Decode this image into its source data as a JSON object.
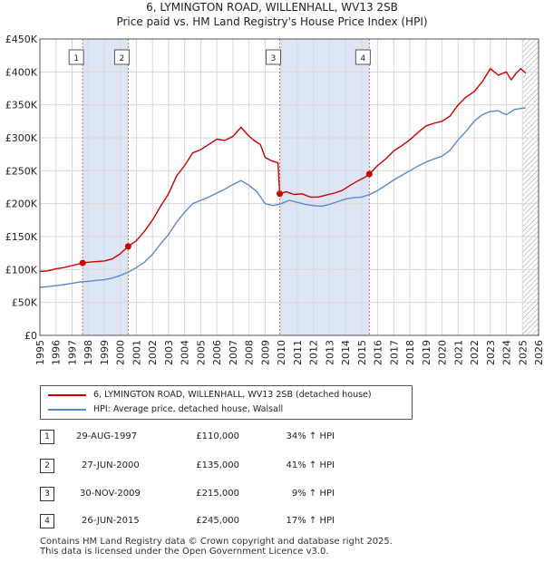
{
  "chart_data": {
    "type": "line",
    "title": "6, LYMINGTON ROAD, WILLENHALL, WV13 2SB",
    "subtitle": "Price paid vs. HM Land Registry's House Price Index (HPI)",
    "xlabel": "",
    "ylabel": "",
    "xlim": [
      1995,
      2026
    ],
    "ylim": [
      0,
      450000
    ],
    "x_ticks": [
      "1995",
      "1996",
      "1997",
      "1998",
      "1999",
      "2000",
      "2001",
      "2002",
      "2003",
      "2004",
      "2005",
      "2006",
      "2007",
      "2008",
      "2009",
      "2010",
      "2011",
      "2012",
      "2013",
      "2014",
      "2015",
      "2016",
      "2017",
      "2018",
      "2019",
      "2020",
      "2021",
      "2022",
      "2023",
      "2024",
      "2025",
      "2026"
    ],
    "y_ticks": [
      {
        "value": 0,
        "label": "£0"
      },
      {
        "value": 50000,
        "label": "£50K"
      },
      {
        "value": 100000,
        "label": "£100K"
      },
      {
        "value": 150000,
        "label": "£150K"
      },
      {
        "value": 200000,
        "label": "£200K"
      },
      {
        "value": 250000,
        "label": "£250K"
      },
      {
        "value": 300000,
        "label": "£300K"
      },
      {
        "value": 350000,
        "label": "£350K"
      },
      {
        "value": 400000,
        "label": "£400K"
      },
      {
        "value": 450000,
        "label": "£450K"
      }
    ],
    "series": [
      {
        "name": "6, LYMINGTON ROAD, WILLENHALL, WV13 2SB (detached house)",
        "color": "#cc0000",
        "x": [
          1995.0,
          1995.5,
          1996.0,
          1996.5,
          1997.0,
          1997.66,
          1998.0,
          1998.5,
          1999.0,
          1999.5,
          2000.0,
          2000.49,
          2001.0,
          2001.5,
          2002.0,
          2002.5,
          2003.0,
          2003.5,
          2004.0,
          2004.5,
          2005.0,
          2005.5,
          2006.0,
          2006.5,
          2007.0,
          2007.5,
          2007.9,
          2008.3,
          2008.7,
          2009.0,
          2009.4,
          2009.8,
          2009.91,
          2010.3,
          2010.8,
          2011.3,
          2011.8,
          2012.3,
          2012.8,
          2013.3,
          2013.8,
          2014.3,
          2014.8,
          2015.2,
          2015.48,
          2016.0,
          2016.5,
          2017.0,
          2017.5,
          2018.0,
          2018.5,
          2019.0,
          2019.5,
          2020.0,
          2020.5,
          2021.0,
          2021.5,
          2022.0,
          2022.5,
          2023.0,
          2023.5,
          2024.0,
          2024.3,
          2024.6,
          2024.9,
          2025.2
        ],
        "values": [
          97000,
          98000,
          101000,
          103000,
          106000,
          110000,
          111000,
          112000,
          113000,
          116000,
          124000,
          135000,
          144000,
          158000,
          175000,
          196000,
          215000,
          242000,
          258000,
          277000,
          282000,
          290000,
          298000,
          296000,
          302000,
          316000,
          305000,
          296000,
          290000,
          270000,
          265000,
          262000,
          215000,
          218000,
          214000,
          215000,
          210000,
          210000,
          213000,
          216000,
          220000,
          228000,
          235000,
          240000,
          245000,
          258000,
          268000,
          280000,
          288000,
          297000,
          308000,
          318000,
          322000,
          325000,
          333000,
          350000,
          362000,
          370000,
          385000,
          405000,
          395000,
          400000,
          388000,
          398000,
          405000,
          398000
        ]
      },
      {
        "name": "HPI: Average price, detached house, Walsall",
        "color": "#5b8ac8",
        "x": [
          1995.0,
          1995.5,
          1996.0,
          1996.5,
          1997.0,
          1997.5,
          1998.0,
          1998.5,
          1999.0,
          1999.5,
          2000.0,
          2000.5,
          2001.0,
          2001.5,
          2002.0,
          2002.5,
          2003.0,
          2003.5,
          2004.0,
          2004.5,
          2005.0,
          2005.5,
          2006.0,
          2006.5,
          2007.0,
          2007.5,
          2008.0,
          2008.5,
          2009.0,
          2009.5,
          2010.0,
          2010.5,
          2011.0,
          2011.5,
          2012.0,
          2012.5,
          2013.0,
          2013.5,
          2014.0,
          2014.5,
          2015.0,
          2015.5,
          2016.0,
          2016.5,
          2017.0,
          2017.5,
          2018.0,
          2018.5,
          2019.0,
          2019.5,
          2020.0,
          2020.5,
          2021.0,
          2021.5,
          2022.0,
          2022.5,
          2023.0,
          2023.5,
          2024.0,
          2024.5,
          2025.0,
          2025.2
        ],
        "values": [
          73000,
          74000,
          75500,
          77000,
          79000,
          81000,
          82000,
          83500,
          84500,
          87000,
          91000,
          96000,
          103000,
          111000,
          123000,
          139000,
          153000,
          172000,
          187000,
          200000,
          205000,
          210000,
          216000,
          222000,
          229000,
          235000,
          228000,
          218000,
          200000,
          197000,
          200000,
          205000,
          202000,
          199000,
          197000,
          196000,
          199000,
          203000,
          207000,
          209000,
          210000,
          214000,
          220000,
          228000,
          236000,
          243000,
          250000,
          257000,
          263000,
          268000,
          272000,
          281000,
          297000,
          310000,
          325000,
          335000,
          340000,
          341000,
          335000,
          343000,
          345000,
          345000
        ]
      }
    ],
    "sales": [
      {
        "num": "1",
        "x": 1997.66,
        "value": 110000
      },
      {
        "num": "2",
        "x": 2000.49,
        "value": 135000
      },
      {
        "num": "3",
        "x": 2009.91,
        "value": 215000
      },
      {
        "num": "4",
        "x": 2015.48,
        "value": 245000
      }
    ],
    "hatch_from": 2025.0
  },
  "legend": {
    "property": "6, LYMINGTON ROAD, WILLENHALL, WV13 2SB (detached house)",
    "hpi": "HPI: Average price, detached house, Walsall"
  },
  "transactions": [
    {
      "num": "1",
      "date": "29-AUG-1997",
      "price": "£110,000",
      "hpi": "34% ↑ HPI"
    },
    {
      "num": "2",
      "date": "27-JUN-2000",
      "price": "£135,000",
      "hpi": "41% ↑ HPI"
    },
    {
      "num": "3",
      "date": "30-NOV-2009",
      "price": "£215,000",
      "hpi": "9% ↑ HPI"
    },
    {
      "num": "4",
      "date": "26-JUN-2015",
      "price": "£245,000",
      "hpi": "17% ↑ HPI"
    }
  ],
  "footer": {
    "line1": "Contains HM Land Registry data © Crown copyright and database right 2025.",
    "line2": "This data is licensed under the Open Government Licence v3.0."
  },
  "colors": {
    "property": "#cc0000",
    "hpi": "#5b8ac8",
    "shade": "#dde6f5",
    "grid": "#d8d8d8"
  }
}
